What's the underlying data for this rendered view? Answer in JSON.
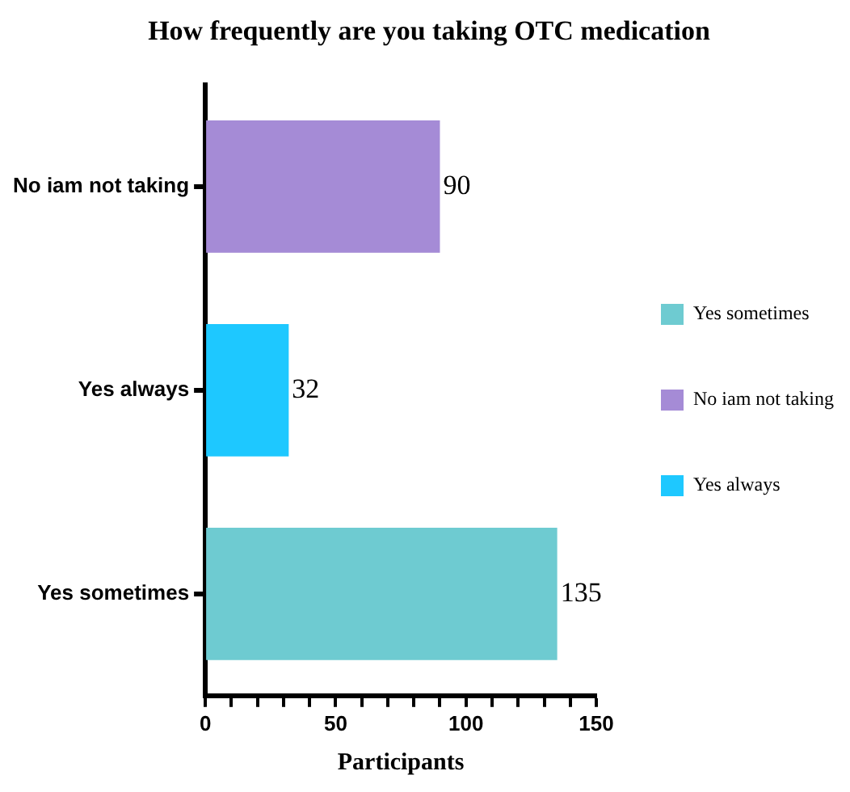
{
  "chart_data": {
    "type": "bar",
    "orientation": "horizontal",
    "title": "How frequently are you taking OTC medication",
    "xlabel": "Participants",
    "categories": [
      "No iam not taking",
      "Yes always",
      "Yes sometimes"
    ],
    "series": [
      {
        "name": "Yes sometimes",
        "color": "#6ecbd1",
        "values": [
          null,
          null,
          135
        ]
      },
      {
        "name": "No iam not taking",
        "color": "#a58bd6",
        "values": [
          90,
          null,
          null
        ]
      },
      {
        "name": "Yes always",
        "color": "#1ec8ff",
        "values": [
          null,
          32,
          null
        ]
      }
    ],
    "xlim": [
      0,
      150
    ],
    "xticks": [
      0,
      {
        "value": 10,
        "label": null
      },
      {
        "value": 20,
        "label": null
      },
      {
        "value": 30,
        "label": null
      },
      {
        "value": 40,
        "label": null
      },
      50,
      {
        "value": 60,
        "label": null
      },
      {
        "value": 70,
        "label": null
      },
      {
        "value": 80,
        "label": null
      },
      {
        "value": 90,
        "label": null
      },
      100,
      {
        "value": 110,
        "label": null
      },
      {
        "value": 120,
        "label": null
      },
      {
        "value": 130,
        "label": null
      },
      {
        "value": 140,
        "label": null
      },
      150
    ],
    "grid": false,
    "legend": "right",
    "data_labels": true
  }
}
